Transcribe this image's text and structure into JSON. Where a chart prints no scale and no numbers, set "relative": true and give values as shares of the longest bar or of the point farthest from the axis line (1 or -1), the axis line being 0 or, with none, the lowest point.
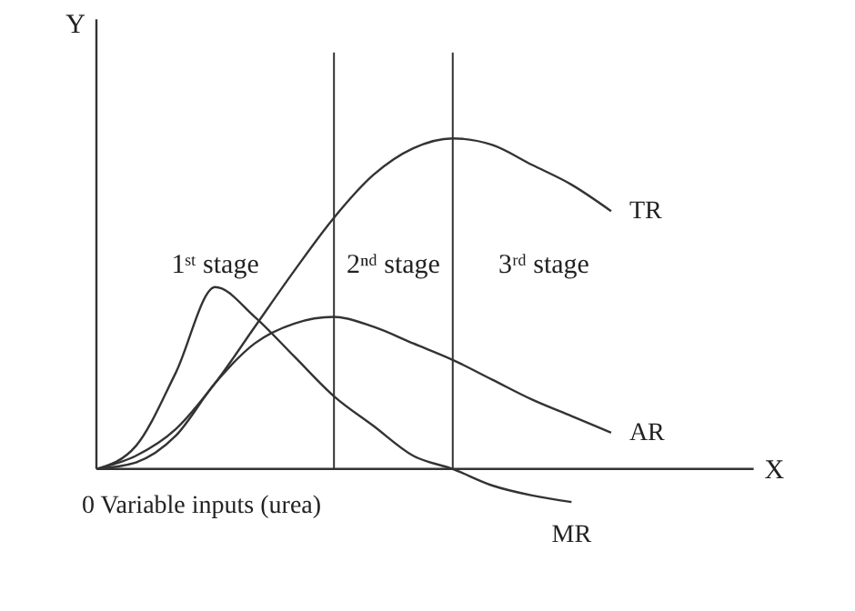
{
  "chart_data": {
    "type": "line",
    "relative": true,
    "xlabel": "0 Variable inputs (urea)",
    "ylabel": "Y",
    "categories": [
      null,
      null,
      null,
      null,
      null,
      null,
      null,
      null,
      null,
      null,
      null,
      null,
      null,
      null
    ],
    "series": [
      {
        "name": "TR",
        "color": "#333333",
        "values": [
          0,
          0.04,
          0.12,
          0.26,
          0.43,
          0.6,
          0.76,
          0.89,
          0.97,
          1,
          0.98,
          0.92,
          0.86,
          0.78
        ]
      },
      {
        "name": "AR",
        "color": "#333333",
        "values": [
          0,
          0.02,
          0.1,
          0.26,
          0.38,
          0.44,
          0.46,
          0.43,
          0.38,
          0.33,
          0.27,
          0.21,
          0.16,
          0.11
        ]
      },
      {
        "name": "MR",
        "color": "#333333",
        "values": [
          0,
          0.07,
          0.29,
          0.55,
          0.46,
          0.34,
          0.22,
          0.13,
          0.04,
          0,
          -0.05,
          -0.08,
          -0.1,
          null
        ]
      }
    ],
    "annotations": [
      "1ˢᵗ stage",
      "2ⁿᵈ stage",
      "3ʳᵈ stage",
      "X"
    ]
  }
}
